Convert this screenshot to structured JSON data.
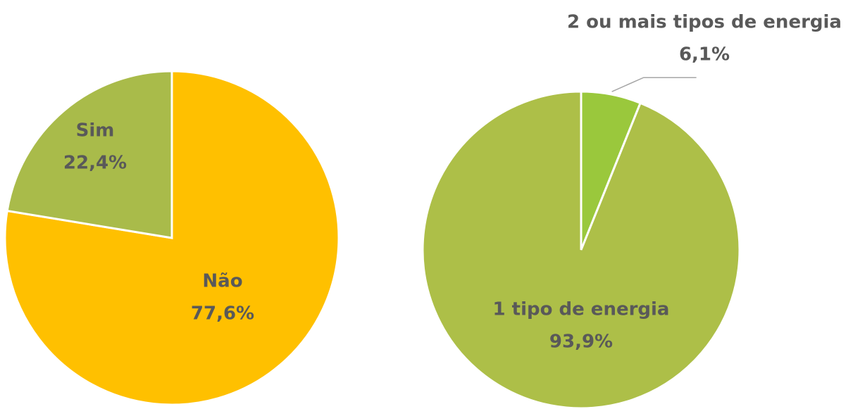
{
  "chart_data": [
    {
      "type": "pie",
      "categories": [
        "Não",
        "Sim"
      ],
      "values": [
        77.6,
        22.4
      ],
      "value_labels": [
        "77,6%",
        "22,4%"
      ],
      "colors": [
        "#ffc000",
        "#a9bb4a"
      ]
    },
    {
      "type": "pie",
      "categories": [
        "2 ou mais tipos de energia",
        "1 tipo de energia"
      ],
      "values": [
        6.1,
        93.9
      ],
      "value_labels": [
        "6,1%",
        "93,9%"
      ],
      "colors": [
        "#9ac83c",
        "#adbf48"
      ]
    }
  ]
}
